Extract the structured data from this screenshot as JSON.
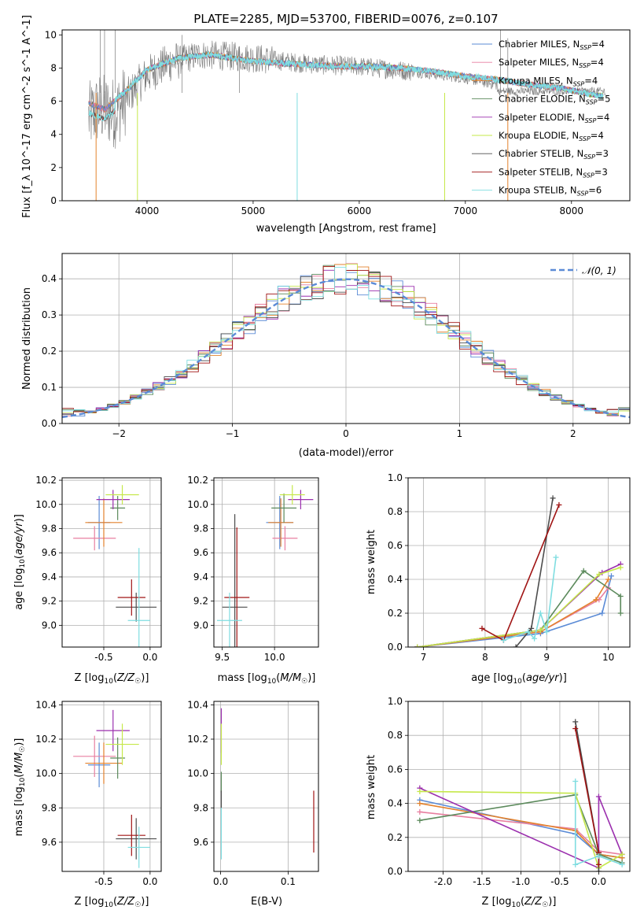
{
  "colors": {
    "Chabrier MILES": "#5b8bd6",
    "Salpeter MILES": "#e87fa0",
    "Kroupa MILES": "#e3822d",
    "Chabrier ELODIE": "#5c8a5c",
    "Salpeter ELODIE": "#9b2fae",
    "Kroupa ELODIE": "#c6e84a",
    "Chabrier STELIB": "#4d4d4d",
    "Salpeter STELIB": "#a01414",
    "Kroupa STELIB": "#7fdde0",
    "normal": "#5b8bd6"
  },
  "legend": [
    {
      "model": "Chabrier MILES",
      "n": "4"
    },
    {
      "model": "Salpeter MILES",
      "n": "4"
    },
    {
      "model": "Kroupa MILES",
      "n": "4"
    },
    {
      "model": "Chabrier ELODIE",
      "n": "5"
    },
    {
      "model": "Salpeter ELODIE",
      "n": "4"
    },
    {
      "model": "Kroupa ELODIE",
      "n": "4"
    },
    {
      "model": "Chabrier STELIB",
      "n": "3"
    },
    {
      "model": "Salpeter STELIB",
      "n": "3"
    },
    {
      "model": "Kroupa STELIB",
      "n": "6"
    }
  ],
  "chart_data": [
    {
      "type": "line",
      "title": "PLATE=2285, MJD=53700, FIBERID=0076, z=0.107",
      "xlabel": "wavelength [Angstrom, rest frame]",
      "ylabel": "Flux [f_λ 10^-17 erg cm^-2 s^-1 A^-1]",
      "xlim": [
        3200,
        8550
      ],
      "ylim": [
        0,
        10.3
      ],
      "xticks": [
        4000,
        5000,
        6000,
        7000,
        8000
      ],
      "yticks": [
        0,
        2,
        4,
        6,
        8,
        10
      ],
      "spectrum_trend": {
        "x": [
          3450,
          3550,
          3700,
          3850,
          4000,
          4200,
          4500,
          4800,
          5000,
          5300,
          5600,
          6000,
          6500,
          7000,
          7300
        ],
        "y": [
          5.0,
          5.6,
          5.3,
          6.5,
          7.6,
          8.3,
          8.8,
          8.7,
          8.6,
          8.4,
          8.2,
          8.1,
          7.8,
          7.4,
          7.0
        ]
      },
      "model_continuum": {
        "x": [
          3450,
          3600,
          3800,
          4000,
          4300,
          4600,
          4900,
          5200,
          5500,
          5800,
          6100,
          6400,
          6700,
          7000,
          7300,
          7600,
          7900,
          8200,
          8300
        ],
        "y": [
          5.9,
          5.5,
          6.6,
          7.9,
          8.6,
          8.8,
          8.5,
          8.3,
          8.2,
          8.1,
          8.1,
          8.0,
          7.8,
          7.5,
          7.3,
          7.0,
          6.8,
          6.4,
          6.3
        ]
      }
    },
    {
      "type": "line",
      "xlabel": "(data-model)/error",
      "ylabel": "Normed distribution",
      "xlim": [
        -2.5,
        2.5
      ],
      "ylim": [
        0,
        0.47
      ],
      "xticks": [
        -2,
        -1,
        0,
        1,
        2
      ],
      "yticks": [
        0.0,
        0.1,
        0.2,
        0.3,
        0.4
      ],
      "normal_label": "𝒩(0, 1)"
    },
    {
      "type": "scatter",
      "xlabel": "Z [log10(Z/Z☉)]",
      "ylabel": "age [log10(age/yr)]",
      "xlim": [
        -0.95,
        0.12
      ],
      "ylim": [
        8.82,
        10.22
      ],
      "xticks": [
        -0.5,
        0.0
      ],
      "yticks": [
        9.0,
        9.2,
        9.4,
        9.6,
        9.8,
        10.0,
        10.2
      ],
      "points": [
        {
          "model": "Chabrier MILES",
          "x": -0.55,
          "y": 9.85,
          "ex": 0.12,
          "ey": 0.22
        },
        {
          "model": "Salpeter MILES",
          "x": -0.6,
          "y": 9.72,
          "ex": 0.23,
          "ey": 0.1
        },
        {
          "model": "Kroupa MILES",
          "x": -0.5,
          "y": 9.85,
          "ex": 0.2,
          "ey": 0.2
        },
        {
          "model": "Chabrier ELODIE",
          "x": -0.35,
          "y": 9.97,
          "ex": 0.08,
          "ey": 0.1
        },
        {
          "model": "Salpeter ELODIE",
          "x": -0.4,
          "y": 10.04,
          "ex": 0.18,
          "ey": 0.08
        },
        {
          "model": "Kroupa ELODIE",
          "x": -0.3,
          "y": 10.08,
          "ex": 0.18,
          "ey": 0.08
        },
        {
          "model": "Chabrier STELIB",
          "x": -0.15,
          "y": 9.15,
          "ex": 0.22,
          "ey": 0.12
        },
        {
          "model": "Salpeter STELIB",
          "x": -0.2,
          "y": 9.23,
          "ex": 0.15,
          "ey": 0.15
        },
        {
          "model": "Kroupa STELIB",
          "x": -0.12,
          "y": 9.04,
          "ex": 0.12,
          "ey": 0.6
        }
      ]
    },
    {
      "type": "scatter",
      "xlabel": "mass [log10(M/M☉)]",
      "xlim": [
        9.42,
        10.42
      ],
      "ylim": [
        8.82,
        10.22
      ],
      "xticks": [
        9.5,
        10.0
      ],
      "yticks": [
        9.0,
        9.2,
        9.4,
        9.6,
        9.8,
        10.0,
        10.2
      ],
      "points": [
        {
          "model": "Chabrier MILES",
          "x": 10.05,
          "y": 9.85,
          "ex": 0.13,
          "ey": 0.22
        },
        {
          "model": "Salpeter MILES",
          "x": 10.1,
          "y": 9.72,
          "ex": 0.12,
          "ey": 0.1
        },
        {
          "model": "Kroupa MILES",
          "x": 10.06,
          "y": 9.85,
          "ex": 0.12,
          "ey": 0.2
        },
        {
          "model": "Chabrier ELODIE",
          "x": 10.09,
          "y": 9.97,
          "ex": 0.12,
          "ey": 0.12
        },
        {
          "model": "Salpeter ELODIE",
          "x": 10.25,
          "y": 10.04,
          "ex": 0.12,
          "ey": 0.08
        },
        {
          "model": "Kroupa ELODIE",
          "x": 10.17,
          "y": 10.08,
          "ex": 0.12,
          "ey": 0.08
        },
        {
          "model": "Chabrier STELIB",
          "x": 9.62,
          "y": 9.15,
          "ex": 0.12,
          "ey": 0.77
        },
        {
          "model": "Salpeter STELIB",
          "x": 9.64,
          "y": 9.23,
          "ex": 0.12,
          "ey": 0.58
        },
        {
          "model": "Kroupa STELIB",
          "x": 9.57,
          "y": 9.04,
          "ex": 0.12,
          "ey": 0.23
        }
      ]
    },
    {
      "type": "line",
      "xlabel": "age [log10(age/yr)]",
      "ylabel": "mass weight",
      "xlim": [
        6.75,
        10.35
      ],
      "ylim": [
        0,
        1.0
      ],
      "xticks": [
        7,
        8,
        9,
        10
      ],
      "yticks": [
        0.0,
        0.2,
        0.4,
        0.6,
        0.8,
        1.0
      ],
      "series": [
        {
          "model": "Chabrier MILES",
          "x": [
            6.9,
            8.9,
            9.9,
            10.05
          ],
          "y": [
            0.0,
            0.08,
            0.2,
            0.42
          ]
        },
        {
          "model": "Salpeter MILES",
          "x": [
            6.9,
            8.9,
            9.85,
            10.0
          ],
          "y": [
            0.0,
            0.09,
            0.28,
            0.35
          ]
        },
        {
          "model": "Kroupa MILES",
          "x": [
            6.9,
            8.9,
            9.8,
            10.0
          ],
          "y": [
            0.0,
            0.09,
            0.28,
            0.4
          ]
        },
        {
          "model": "Chabrier ELODIE",
          "x": [
            6.9,
            8.9,
            9.6,
            10.2,
            10.2
          ],
          "y": [
            0.0,
            0.1,
            0.45,
            0.3,
            0.2
          ]
        },
        {
          "model": "Salpeter ELODIE",
          "x": [
            6.9,
            8.9,
            9.9,
            10.2
          ],
          "y": [
            0.0,
            0.1,
            0.44,
            0.49
          ]
        },
        {
          "model": "Kroupa ELODIE",
          "x": [
            6.9,
            8.9,
            9.85,
            10.2
          ],
          "y": [
            0.0,
            0.1,
            0.43,
            0.47
          ]
        },
        {
          "model": "Chabrier STELIB",
          "x": [
            8.5,
            8.75,
            9.1
          ],
          "y": [
            0.0,
            0.11,
            0.88
          ]
        },
        {
          "model": "Salpeter STELIB",
          "x": [
            7.95,
            8.3,
            9.2
          ],
          "y": [
            0.11,
            0.04,
            0.84
          ]
        },
        {
          "model": "Kroupa STELIB",
          "x": [
            8.3,
            8.7,
            8.8,
            8.9,
            9.0,
            9.15
          ],
          "y": [
            0.04,
            0.09,
            0.05,
            0.2,
            0.09,
            0.53
          ]
        }
      ]
    },
    {
      "type": "scatter",
      "xlabel": "Z [log10(Z/Z☉)]",
      "ylabel": "mass [log10(M/M☉)]",
      "xlim": [
        -0.95,
        0.12
      ],
      "ylim": [
        9.43,
        10.42
      ],
      "xticks": [
        -0.5,
        0.0
      ],
      "yticks": [
        9.6,
        9.8,
        10.0,
        10.2,
        10.4
      ],
      "points": [
        {
          "model": "Chabrier MILES",
          "x": -0.55,
          "y": 10.05,
          "ex": 0.12,
          "ey": 0.13
        },
        {
          "model": "Salpeter MILES",
          "x": -0.6,
          "y": 10.1,
          "ex": 0.23,
          "ey": 0.12
        },
        {
          "model": "Kroupa MILES",
          "x": -0.5,
          "y": 10.06,
          "ex": 0.2,
          "ey": 0.12
        },
        {
          "model": "Chabrier ELODIE",
          "x": -0.35,
          "y": 10.09,
          "ex": 0.08,
          "ey": 0.12
        },
        {
          "model": "Salpeter ELODIE",
          "x": -0.4,
          "y": 10.25,
          "ex": 0.18,
          "ey": 0.12
        },
        {
          "model": "Kroupa ELODIE",
          "x": -0.3,
          "y": 10.17,
          "ex": 0.18,
          "ey": 0.12
        },
        {
          "model": "Chabrier STELIB",
          "x": -0.15,
          "y": 9.62,
          "ex": 0.22,
          "ey": 0.12
        },
        {
          "model": "Salpeter STELIB",
          "x": -0.2,
          "y": 9.64,
          "ex": 0.15,
          "ey": 0.12
        },
        {
          "model": "Kroupa STELIB",
          "x": -0.12,
          "y": 9.57,
          "ex": 0.12,
          "ey": 0.12
        }
      ]
    },
    {
      "type": "scatter",
      "xlabel": "E(B-V)",
      "xlim": [
        -0.01,
        0.145
      ],
      "ylim": [
        9.43,
        10.42
      ],
      "xticks": [
        0.0,
        0.1
      ],
      "yticks": [
        9.6,
        9.8,
        10.0,
        10.2,
        10.4
      ],
      "points": [
        {
          "model": "Salpeter ELODIE",
          "x": 0.001,
          "y": 10.25,
          "ex": 0,
          "ey": 0.13
        },
        {
          "model": "Kroupa ELODIE",
          "x": 0.001,
          "y": 10.17,
          "ex": 0,
          "ey": 0.12
        },
        {
          "model": "Chabrier ELODIE",
          "x": 0.001,
          "y": 9.95,
          "ex": 0,
          "ey": 0.06
        },
        {
          "model": "Chabrier STELIB",
          "x": 0.001,
          "y": 9.85,
          "ex": 0,
          "ey": 0.05
        },
        {
          "model": "Kroupa STELIB",
          "x": 0.001,
          "y": 9.65,
          "ex": 0,
          "ey": 0.15
        },
        {
          "model": "Salpeter STELIB",
          "x": 0.138,
          "y": 9.72,
          "ex": 0,
          "ey": 0.18
        }
      ]
    },
    {
      "type": "line",
      "xlabel": "Z [log10(Z/Z☉)]",
      "ylabel": "mass weight",
      "xlim": [
        -2.45,
        0.4
      ],
      "ylim": [
        0,
        1.0
      ],
      "xticks": [
        -2.0,
        -1.5,
        -1.0,
        -0.5,
        0.0
      ],
      "yticks": [
        0.0,
        0.2,
        0.4,
        0.6,
        0.8,
        1.0
      ],
      "series": [
        {
          "model": "Chabrier MILES",
          "x": [
            -2.3,
            -0.3,
            0.0,
            0.3
          ],
          "y": [
            0.42,
            0.22,
            0.1,
            0.08
          ]
        },
        {
          "model": "Salpeter MILES",
          "x": [
            -2.3,
            -0.3,
            0.0,
            0.3
          ],
          "y": [
            0.35,
            0.25,
            0.12,
            0.1
          ]
        },
        {
          "model": "Kroupa MILES",
          "x": [
            -2.3,
            -0.3,
            0.0,
            0.3
          ],
          "y": [
            0.4,
            0.24,
            0.1,
            0.08
          ]
        },
        {
          "model": "Chabrier ELODIE",
          "x": [
            -2.3,
            -0.3,
            0.0,
            0.3
          ],
          "y": [
            0.3,
            0.45,
            0.1,
            0.05
          ]
        },
        {
          "model": "Salpeter ELODIE",
          "x": [
            -2.3,
            0.0,
            0.0,
            0.3
          ],
          "y": [
            0.49,
            0.02,
            0.44,
            0.1
          ]
        },
        {
          "model": "Kroupa ELODIE",
          "x": [
            -2.3,
            -0.3,
            0.0,
            0.3
          ],
          "y": [
            0.47,
            0.46,
            0.02,
            0.1
          ]
        },
        {
          "model": "Chabrier STELIB",
          "x": [
            -0.3,
            0.0,
            0.0
          ],
          "y": [
            0.88,
            0.11,
            0.0
          ]
        },
        {
          "model": "Salpeter STELIB",
          "x": [
            -0.3,
            0.0,
            0.0
          ],
          "y": [
            0.84,
            0.11,
            0.04
          ]
        },
        {
          "model": "Kroupa STELIB",
          "x": [
            -0.3,
            -0.3,
            0.0,
            0.3
          ],
          "y": [
            0.53,
            0.04,
            0.09,
            0.04
          ]
        }
      ]
    }
  ]
}
